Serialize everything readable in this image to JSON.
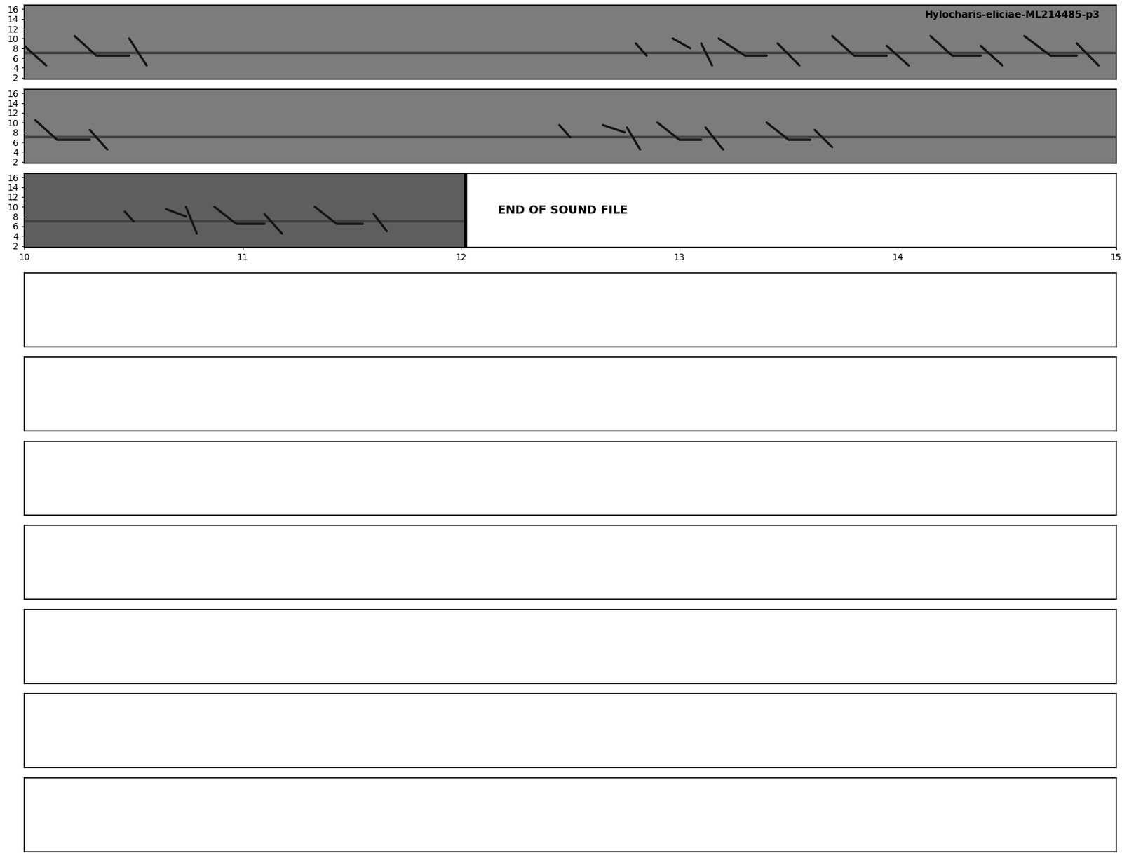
{
  "chart_data": {
    "type": "spectrogram",
    "title": "Hylocharis-eliciae-ML214485-p3",
    "end_label": "END OF SOUND FILE",
    "end_time": 12.02,
    "band_freq": 7,
    "ylim": [
      1.75,
      16.8
    ],
    "yticks": [
      2,
      4,
      6,
      8,
      10,
      12,
      14,
      16
    ],
    "empty_panels": 7,
    "panels": [
      {
        "xlim": [
          0,
          5
        ],
        "tick_labels": "y",
        "notes": [
          {
            "x": [
              0.0,
              0.1
            ],
            "y": [
              8.5,
              4.5
            ]
          },
          {
            "x": [
              0.23,
              0.33,
              0.48
            ],
            "y": [
              10.5,
              6.5,
              6.5
            ]
          },
          {
            "x": [
              0.48,
              0.56
            ],
            "y": [
              10,
              4.5
            ]
          },
          {
            "x": [
              2.8,
              2.85
            ],
            "y": [
              9,
              6.5
            ]
          },
          {
            "x": [
              2.97,
              3.05
            ],
            "y": [
              10,
              8
            ]
          },
          {
            "x": [
              3.1,
              3.15
            ],
            "y": [
              9,
              4.5
            ]
          },
          {
            "x": [
              3.18,
              3.3,
              3.4
            ],
            "y": [
              10,
              6.5,
              6.5
            ]
          },
          {
            "x": [
              3.45,
              3.55
            ],
            "y": [
              9,
              4.5
            ]
          },
          {
            "x": [
              3.7,
              3.8,
              3.95
            ],
            "y": [
              10.5,
              6.5,
              6.5
            ]
          },
          {
            "x": [
              3.95,
              4.05
            ],
            "y": [
              8.5,
              4.5
            ]
          },
          {
            "x": [
              4.15,
              4.25,
              4.38
            ],
            "y": [
              10.5,
              6.5,
              6.5
            ]
          },
          {
            "x": [
              4.38,
              4.48
            ],
            "y": [
              8.5,
              4.5
            ]
          },
          {
            "x": [
              4.58,
              4.7,
              4.82
            ],
            "y": [
              10.5,
              6.5,
              6.5
            ]
          },
          {
            "x": [
              4.82,
              4.92
            ],
            "y": [
              9,
              4.5
            ]
          }
        ]
      },
      {
        "xlim": [
          5,
          10
        ],
        "tick_labels": "y",
        "notes": [
          {
            "x": [
              5.05,
              5.15,
              5.3
            ],
            "y": [
              10.5,
              6.5,
              6.5
            ]
          },
          {
            "x": [
              5.3,
              5.38
            ],
            "y": [
              8.5,
              4.5
            ]
          },
          {
            "x": [
              7.45,
              7.5
            ],
            "y": [
              9.5,
              7
            ]
          },
          {
            "x": [
              7.65,
              7.75
            ],
            "y": [
              9.5,
              8
            ]
          },
          {
            "x": [
              7.76,
              7.82
            ],
            "y": [
              9,
              4.5
            ]
          },
          {
            "x": [
              7.9,
              8.0,
              8.1
            ],
            "y": [
              10,
              6.5,
              6.5
            ]
          },
          {
            "x": [
              8.12,
              8.2
            ],
            "y": [
              9,
              4.5
            ]
          },
          {
            "x": [
              8.4,
              8.5,
              8.6
            ],
            "y": [
              10,
              6.5,
              6.5
            ]
          },
          {
            "x": [
              8.62,
              8.7
            ],
            "y": [
              8.5,
              5
            ]
          }
        ]
      },
      {
        "xlim": [
          10,
          15
        ],
        "xticks": [
          10,
          11,
          12,
          13,
          14,
          15
        ],
        "notes": [
          {
            "x": [
              10.46,
              10.5
            ],
            "y": [
              9,
              7
            ]
          },
          {
            "x": [
              10.65,
              10.74
            ],
            "y": [
              9.5,
              8
            ]
          },
          {
            "x": [
              10.74,
              10.79
            ],
            "y": [
              10,
              4.5
            ]
          },
          {
            "x": [
              10.87,
              10.97,
              11.1
            ],
            "y": [
              10,
              6.5,
              6.5
            ]
          },
          {
            "x": [
              11.1,
              11.18
            ],
            "y": [
              8.5,
              4.5
            ]
          },
          {
            "x": [
              11.33,
              11.43,
              11.55
            ],
            "y": [
              10,
              6.5,
              6.5
            ]
          },
          {
            "x": [
              11.6,
              11.66
            ],
            "y": [
              8.5,
              5
            ]
          }
        ]
      }
    ]
  }
}
